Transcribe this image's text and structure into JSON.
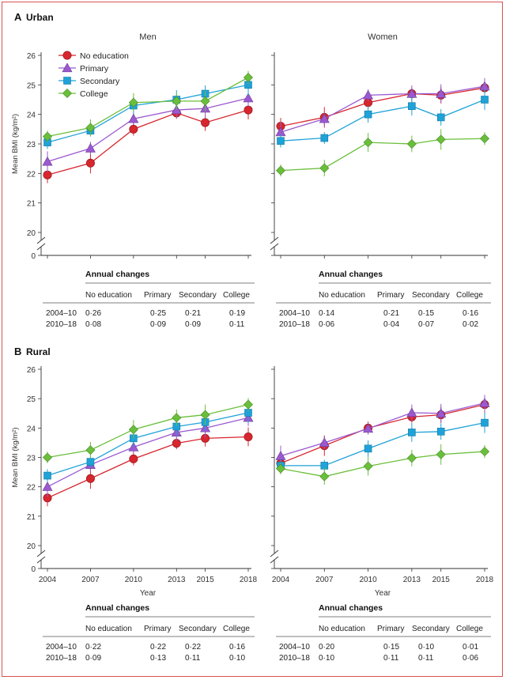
{
  "chart_data": {
    "type": "line",
    "x": [
      2004,
      2007,
      2010,
      2013,
      2015,
      2018
    ],
    "ylabel": "Mean BMI (kg/m²)",
    "xlabel": "Year",
    "ylim": [
      20,
      26
    ],
    "yticks": [
      20,
      21,
      22,
      23,
      24,
      25,
      26
    ],
    "axis_break": true,
    "legend": {
      "placement": "top-left",
      "entries": [
        "No education",
        "Primary",
        "Secondary",
        "College"
      ]
    },
    "colors": {
      "No education": "#d7262e",
      "Primary": "#9b59d0",
      "Secondary": "#1fa2d8",
      "College": "#6abf3a"
    },
    "sections": [
      {
        "letter": "A",
        "title": "Urban",
        "panels": [
          {
            "title": "Men",
            "series": [
              {
                "name": "No education",
                "values": [
                  21.95,
                  22.35,
                  23.5,
                  24.05,
                  23.72,
                  24.15
                ]
              },
              {
                "name": "Primary",
                "values": [
                  22.4,
                  22.85,
                  23.85,
                  24.15,
                  24.2,
                  24.55
                ]
              },
              {
                "name": "Secondary",
                "values": [
                  23.05,
                  23.45,
                  24.3,
                  24.5,
                  24.7,
                  25.0
                ]
              },
              {
                "name": "College",
                "values": [
                  23.25,
                  23.55,
                  24.4,
                  24.45,
                  24.45,
                  25.25
                ]
              }
            ],
            "annual_changes": {
              "header": "Annual changes",
              "columns": [
                "No education",
                "Primary",
                "Secondary",
                "College"
              ],
              "rows": [
                {
                  "period": "2004–10",
                  "values": [
                    "0·26",
                    "0·25",
                    "0·21",
                    "0·19"
                  ]
                },
                {
                  "period": "2010–18",
                  "values": [
                    "0·08",
                    "0·09",
                    "0·09",
                    "0·11"
                  ]
                }
              ]
            }
          },
          {
            "title": "Women",
            "series": [
              {
                "name": "No education",
                "values": [
                  23.6,
                  23.9,
                  24.4,
                  24.7,
                  24.65,
                  24.9
                ]
              },
              {
                "name": "Primary",
                "values": [
                  23.4,
                  23.85,
                  24.65,
                  24.7,
                  24.7,
                  24.95
                ]
              },
              {
                "name": "Secondary",
                "values": [
                  23.1,
                  23.2,
                  24.0,
                  24.28,
                  23.9,
                  24.5
                ]
              },
              {
                "name": "College",
                "values": [
                  22.1,
                  22.18,
                  23.05,
                  23.0,
                  23.15,
                  23.18
                ]
              }
            ],
            "annual_changes": {
              "header": "Annual changes",
              "columns": [
                "No education",
                "Primary",
                "Secondary",
                "College"
              ],
              "rows": [
                {
                  "period": "2004–10",
                  "values": [
                    "0·14",
                    "0·21",
                    "0·15",
                    "0·16"
                  ]
                },
                {
                  "period": "2010–18",
                  "values": [
                    "0·06",
                    "0·04",
                    "0·07",
                    "0·02"
                  ]
                }
              ]
            }
          }
        ]
      },
      {
        "letter": "B",
        "title": "Rural",
        "panels": [
          {
            "title": "",
            "series": [
              {
                "name": "No education",
                "values": [
                  21.62,
                  22.28,
                  22.95,
                  23.48,
                  23.65,
                  23.7
                ]
              },
              {
                "name": "Primary",
                "values": [
                  22.0,
                  22.75,
                  23.35,
                  23.85,
                  24.0,
                  24.35
                ]
              },
              {
                "name": "Secondary",
                "values": [
                  22.38,
                  22.85,
                  23.65,
                  24.05,
                  24.2,
                  24.52
                ]
              },
              {
                "name": "College",
                "values": [
                  23.0,
                  23.25,
                  23.95,
                  24.35,
                  24.45,
                  24.8
                ]
              }
            ],
            "annual_changes": {
              "header": "Annual changes",
              "columns": [
                "No education",
                "Primary",
                "Secondary",
                "College"
              ],
              "rows": [
                {
                  "period": "2004–10",
                  "values": [
                    "0·22",
                    "0·22",
                    "0·22",
                    "0·16"
                  ]
                },
                {
                  "period": "2010–18",
                  "values": [
                    "0·09",
                    "0·13",
                    "0·11",
                    "0·10"
                  ]
                }
              ]
            }
          },
          {
            "title": "",
            "series": [
              {
                "name": "No education",
                "values": [
                  22.8,
                  23.4,
                  24.0,
                  24.38,
                  24.45,
                  24.8
                ]
              },
              {
                "name": "Primary",
                "values": [
                  23.05,
                  23.5,
                  23.98,
                  24.52,
                  24.5,
                  24.85
                ]
              },
              {
                "name": "Secondary",
                "values": [
                  22.72,
                  22.72,
                  23.3,
                  23.85,
                  23.88,
                  24.18
                ]
              },
              {
                "name": "College",
                "values": [
                  22.62,
                  22.35,
                  22.7,
                  22.98,
                  23.1,
                  23.2
                ]
              }
            ],
            "annual_changes": {
              "header": "Annual changes",
              "columns": [
                "No education",
                "Primary",
                "Secondary",
                "College"
              ],
              "rows": [
                {
                  "period": "2004–10",
                  "values": [
                    "0·20",
                    "0·15",
                    "0·10",
                    "0·01"
                  ]
                },
                {
                  "period": "2010–18",
                  "values": [
                    "0·10",
                    "0·11",
                    "0·11",
                    "0·06"
                  ]
                }
              ]
            }
          }
        ]
      }
    ]
  }
}
